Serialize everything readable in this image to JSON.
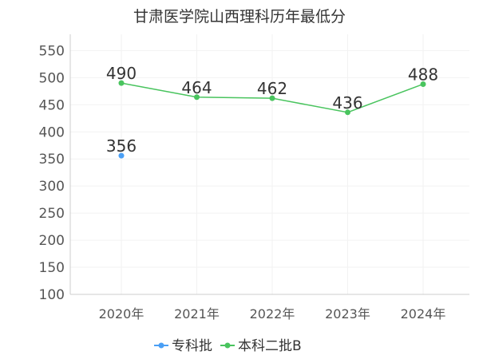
{
  "chart_data": {
    "type": "line",
    "title": "甘肃医学院山西理科历年最低分",
    "categories": [
      "2020年",
      "2021年",
      "2022年",
      "2023年",
      "2024年"
    ],
    "ylim": [
      100,
      580
    ],
    "yticks": [
      100,
      150,
      200,
      250,
      300,
      350,
      400,
      450,
      500,
      550
    ],
    "grid": true,
    "legend_position": "bottom",
    "series": [
      {
        "name": "专科批",
        "color": "#4a9ff5",
        "values": [
          356,
          null,
          null,
          null,
          null
        ]
      },
      {
        "name": "本科二批B",
        "color": "#49c45e",
        "values": [
          490,
          464,
          462,
          436,
          488
        ]
      }
    ]
  }
}
